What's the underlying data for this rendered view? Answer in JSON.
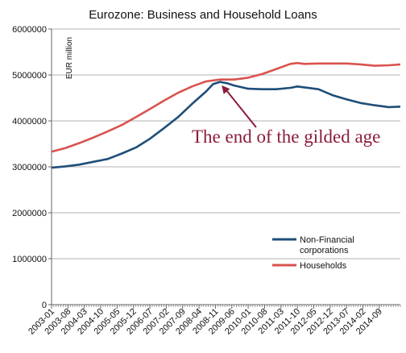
{
  "chart_data": {
    "type": "line",
    "title": "Eurozone: Business and Household Loans",
    "ylabel": "EUR million",
    "ylim": [
      0,
      6000000
    ],
    "yticks": [
      "0",
      "1000000",
      "2000000",
      "3000000",
      "4000000",
      "5000000",
      "6000000"
    ],
    "xlim": [
      "2003-01",
      "2015-06"
    ],
    "xticks": [
      "2003-01",
      "2003-08",
      "2004-03",
      "2004-10",
      "2005-05",
      "2005-12",
      "2006-07",
      "2007-02",
      "2007-09",
      "2008-04",
      "2008-11",
      "2009-06",
      "2010-01",
      "2010-08",
      "2011-03",
      "2011-10",
      "2012-05",
      "2012-12",
      "2013-07",
      "2014-02",
      "2014-09"
    ],
    "legend_position": "bottom-right",
    "grid": "horizontal",
    "series": [
      {
        "name": "Non-Financial corporations",
        "color": "#1f4e79",
        "points": [
          [
            "2003-01",
            2980000
          ],
          [
            "2003-07",
            3010000
          ],
          [
            "2004-01",
            3050000
          ],
          [
            "2004-07",
            3110000
          ],
          [
            "2005-01",
            3170000
          ],
          [
            "2005-07",
            3290000
          ],
          [
            "2006-01",
            3420000
          ],
          [
            "2006-07",
            3610000
          ],
          [
            "2007-01",
            3840000
          ],
          [
            "2007-07",
            4080000
          ],
          [
            "2008-01",
            4370000
          ],
          [
            "2008-07",
            4640000
          ],
          [
            "2008-10",
            4800000
          ],
          [
            "2009-01",
            4850000
          ],
          [
            "2009-04",
            4820000
          ],
          [
            "2009-07",
            4770000
          ],
          [
            "2010-01",
            4700000
          ],
          [
            "2010-07",
            4690000
          ],
          [
            "2011-01",
            4690000
          ],
          [
            "2011-07",
            4720000
          ],
          [
            "2011-10",
            4750000
          ],
          [
            "2012-01",
            4730000
          ],
          [
            "2012-07",
            4690000
          ],
          [
            "2013-01",
            4560000
          ],
          [
            "2013-07",
            4470000
          ],
          [
            "2014-01",
            4390000
          ],
          [
            "2014-07",
            4340000
          ],
          [
            "2015-01",
            4300000
          ],
          [
            "2015-06",
            4310000
          ]
        ]
      },
      {
        "name": "Households",
        "color": "#d9534f",
        "points": [
          [
            "2003-01",
            3330000
          ],
          [
            "2003-07",
            3410000
          ],
          [
            "2004-01",
            3520000
          ],
          [
            "2004-07",
            3640000
          ],
          [
            "2005-01",
            3770000
          ],
          [
            "2005-07",
            3910000
          ],
          [
            "2006-01",
            4080000
          ],
          [
            "2006-07",
            4260000
          ],
          [
            "2007-01",
            4440000
          ],
          [
            "2007-07",
            4610000
          ],
          [
            "2008-01",
            4750000
          ],
          [
            "2008-07",
            4860000
          ],
          [
            "2009-01",
            4900000
          ],
          [
            "2009-07",
            4900000
          ],
          [
            "2010-01",
            4940000
          ],
          [
            "2010-07",
            5020000
          ],
          [
            "2011-01",
            5130000
          ],
          [
            "2011-07",
            5240000
          ],
          [
            "2011-10",
            5260000
          ],
          [
            "2012-01",
            5240000
          ],
          [
            "2012-07",
            5250000
          ],
          [
            "2013-01",
            5250000
          ],
          [
            "2013-07",
            5250000
          ],
          [
            "2014-01",
            5230000
          ],
          [
            "2014-07",
            5200000
          ],
          [
            "2015-01",
            5210000
          ],
          [
            "2015-06",
            5230000
          ]
        ]
      }
    ],
    "annotation": {
      "text": "The end of the gilded age",
      "color": "#8b1c3a",
      "points_to": [
        "2009-01",
        4880000
      ]
    }
  }
}
